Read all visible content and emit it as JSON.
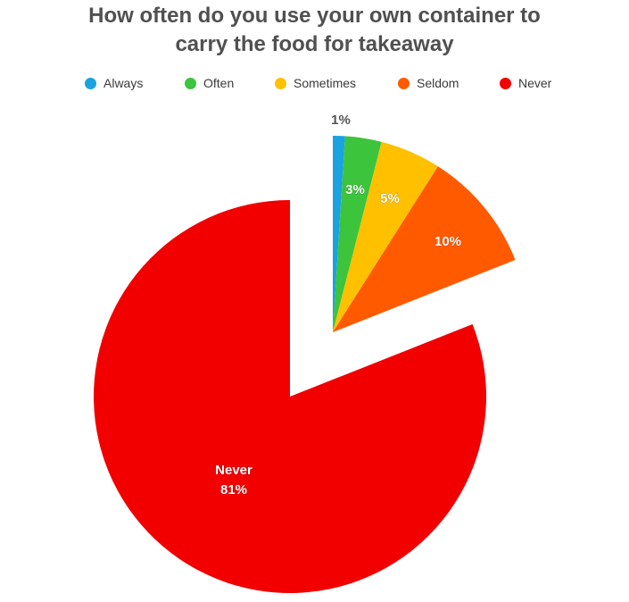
{
  "chart_data": {
    "type": "pie",
    "title": "How often do you use your own container to carry the food for takeaway",
    "title_lines": [
      "How often do you use your own container to",
      "carry the food for takeaway"
    ],
    "legend_position": "top",
    "categories": [
      "Always",
      "Often",
      "Sometimes",
      "Seldom",
      "Never"
    ],
    "values": [
      1,
      3,
      5,
      10,
      81
    ],
    "colors": [
      "#1aa3e0",
      "#3cc43c",
      "#ffc000",
      "#ff5a00",
      "#f20000"
    ],
    "data_labels": [
      "1%",
      "3%",
      "5%",
      "10%",
      "Never\n81%"
    ],
    "exploded": [
      "Always",
      "Often",
      "Sometimes",
      "Seldom"
    ]
  }
}
